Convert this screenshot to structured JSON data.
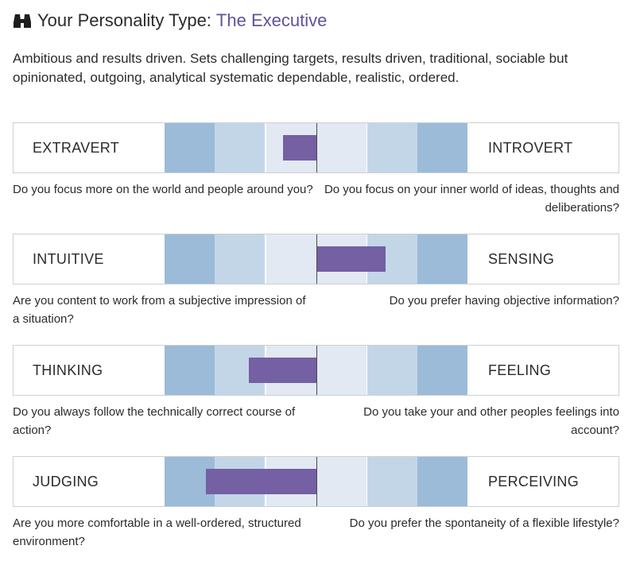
{
  "header": {
    "label": "Your Personality Type:",
    "type_name": "The Executive",
    "logo_icon": "binoculars-icon",
    "accent_color": "#5d5399"
  },
  "description": "Ambitious and results driven. Sets challenging targets, results driven, traditional, sociable but opinionated, outgoing, analytical systematic dependable, realistic, ordered.",
  "scale_colors": {
    "outer": "#9bbbd9",
    "middle": "#c3d6e8",
    "inner": "#e2e9f2",
    "marker": "#7460a2"
  },
  "dimensions": [
    {
      "left_label": "EXTRAVERT",
      "right_label": "INTROVERT",
      "left_question": "Do you focus more on the world and people around you?",
      "right_question": "Do you focus on your inner world of ideas, thoughts and deliberations?",
      "score": -0.22
    },
    {
      "left_label": "INTUITIVE",
      "right_label": "SENSING",
      "left_question": "Are you content to work from a subjective impression of a situation?",
      "right_question": "Do you prefer having objective information?",
      "score": 0.45
    },
    {
      "left_label": "THINKING",
      "right_label": "FEELING",
      "left_question": "Do you always follow the technically correct course of action?",
      "right_question": "Do you take your and other peoples feelings into account?",
      "score": -0.45
    },
    {
      "left_label": "JUDGING",
      "right_label": "PERCEIVING",
      "left_question": "Are you more comfortable in a well-ordered, structured environment?",
      "right_question": "Do you prefer the spontaneity of a flexible lifestyle?",
      "score": -0.73
    }
  ]
}
